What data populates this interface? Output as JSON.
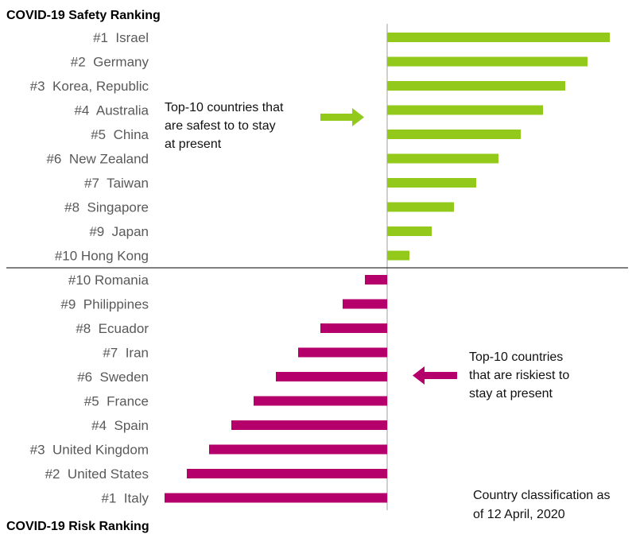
{
  "chart_data": {
    "type": "bar",
    "orientation": "horizontal-diverging",
    "value_note": "Bars have no value labels; bar length shows rank order (longest = rank #1)",
    "panels": [
      {
        "title": "COVID-19 Safety Ranking",
        "direction": "right",
        "color": "#92c91a",
        "categories": [
          "#1  Israel",
          "#2  Germany",
          "#3  Korea, Republic",
          "#4  Australia",
          "#5  China",
          "#6  New Zealand",
          "#7  Taiwan",
          "#8  Singapore",
          "#9  Japan",
          "#10 Hong Kong"
        ],
        "values": [
          10,
          9,
          8,
          7,
          6,
          5,
          4,
          3,
          2,
          1
        ],
        "annotation": [
          "Top-10 countries that",
          "are safest to to stay",
          "at present"
        ]
      },
      {
        "title": "COVID-19 Risk Ranking",
        "direction": "left",
        "color": "#b5006b",
        "categories": [
          "#10 Romania",
          "#9  Philippines",
          "#8  Ecuador",
          "#7  Iran",
          "#6  Sweden",
          "#5  France",
          "#4  Spain",
          "#3  United Kingdom",
          "#2  United States",
          "#1  Italy"
        ],
        "values": [
          1,
          2,
          3,
          4,
          5,
          6,
          7,
          8,
          9,
          10
        ],
        "annotation": [
          "Top-10 countries",
          "that are riskiest to",
          "stay at present"
        ]
      }
    ],
    "footnote": [
      "Country classification as",
      "of 12 April, 2020"
    ],
    "xlim": [
      -10,
      10
    ]
  }
}
